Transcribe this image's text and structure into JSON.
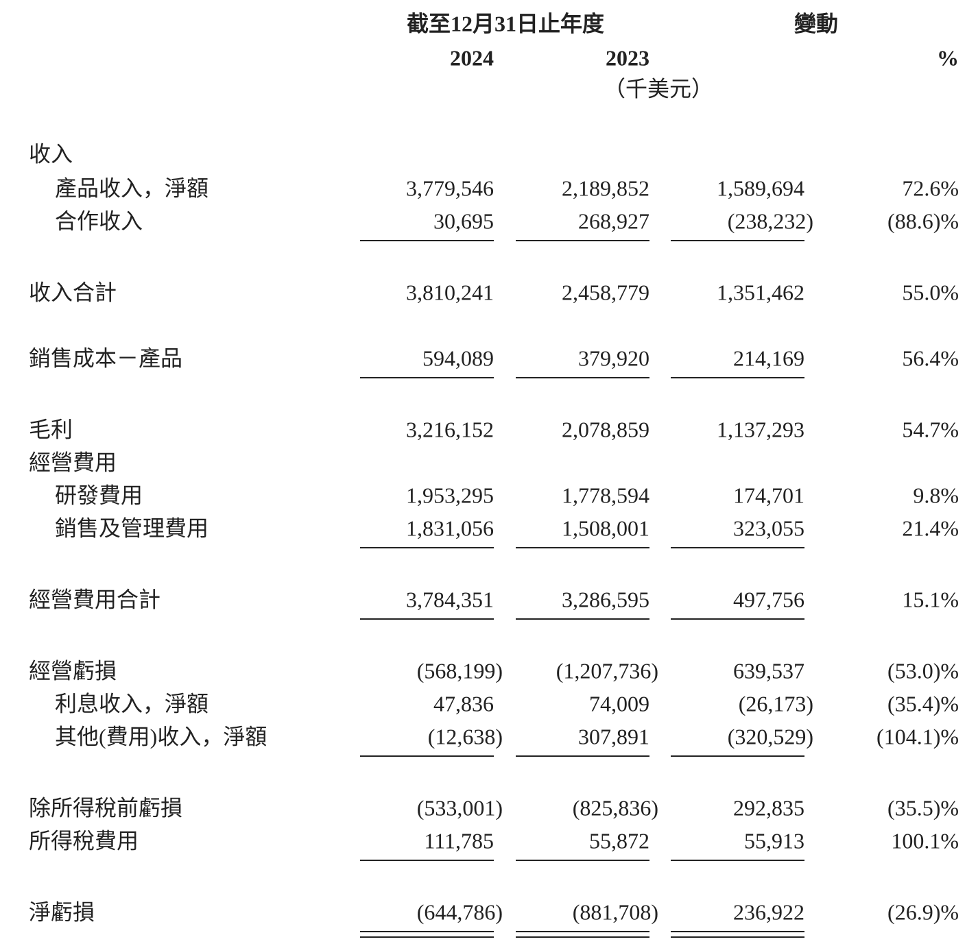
{
  "header": {
    "period": "截至12月31日止年度",
    "change": "變動",
    "year_current": "2024",
    "year_prior": "2023",
    "percent": "%",
    "unit": "（千美元）"
  },
  "rows": [
    {
      "label": "收入",
      "indent": false,
      "values": []
    },
    {
      "label": "產品收入，淨額",
      "indent": true,
      "values": [
        "3,779,546",
        "2,189,852",
        "1,589,694",
        "72.6%"
      ]
    },
    {
      "label": "合作收入",
      "indent": true,
      "values": [
        "30,695",
        "268,927",
        "(238,232)",
        "(88.6)%"
      ],
      "rule": "single"
    },
    {
      "label": "收入合計",
      "indent": false,
      "values": [
        "3,810,241",
        "2,458,779",
        "1,351,462",
        "55.0%"
      ]
    },
    {
      "label": "銷售成本－產品",
      "indent": false,
      "values": [
        "594,089",
        "379,920",
        "214,169",
        "56.4%"
      ],
      "rule": "single"
    },
    {
      "label": "毛利",
      "indent": false,
      "values": [
        "3,216,152",
        "2,078,859",
        "1,137,293",
        "54.7%"
      ]
    },
    {
      "label": "經營費用",
      "indent": false,
      "values": []
    },
    {
      "label": "研發費用",
      "indent": true,
      "values": [
        "1,953,295",
        "1,778,594",
        "174,701",
        "9.8%"
      ]
    },
    {
      "label": "銷售及管理費用",
      "indent": true,
      "values": [
        "1,831,056",
        "1,508,001",
        "323,055",
        "21.4%"
      ],
      "rule": "single"
    },
    {
      "label": "經營費用合計",
      "indent": false,
      "values": [
        "3,784,351",
        "3,286,595",
        "497,756",
        "15.1%"
      ],
      "rule": "single"
    },
    {
      "label": "經營虧損",
      "indent": false,
      "values": [
        "(568,199)",
        "(1,207,736)",
        "639,537",
        "(53.0)%"
      ]
    },
    {
      "label": "利息收入，淨額",
      "indent": true,
      "values": [
        "47,836",
        "74,009",
        "(26,173)",
        "(35.4)%"
      ]
    },
    {
      "label": "其他(費用)收入，淨額",
      "indent": true,
      "values": [
        "(12,638)",
        "307,891",
        "(320,529)",
        "(104.1)%"
      ],
      "rule": "single"
    },
    {
      "label": "除所得稅前虧損",
      "indent": false,
      "values": [
        "(533,001)",
        "(825,836)",
        "292,835",
        "(35.5)%"
      ]
    },
    {
      "label": "所得稅費用",
      "indent": false,
      "values": [
        "111,785",
        "55,872",
        "55,913",
        "100.1%"
      ],
      "rule": "single"
    },
    {
      "label": "淨虧損",
      "indent": false,
      "values": [
        "(644,786)",
        "(881,708)",
        "236,922",
        "(26.9)%"
      ],
      "rule": "double"
    }
  ]
}
